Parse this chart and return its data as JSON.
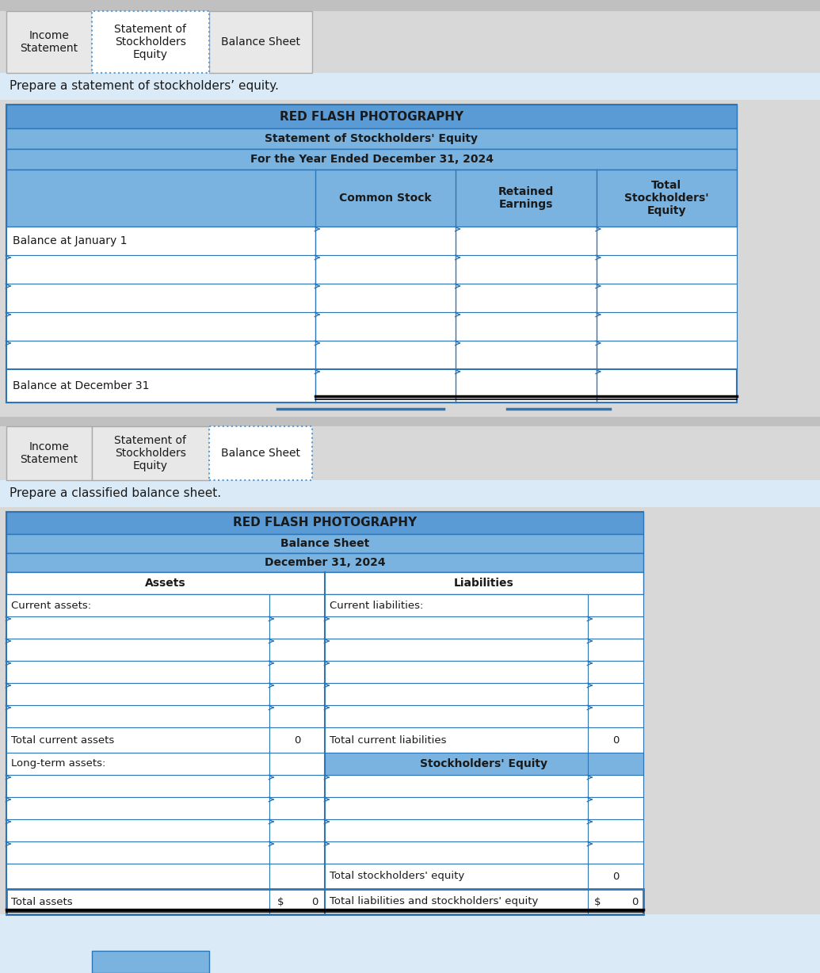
{
  "page_bg": "#d8d8d8",
  "header_bg_dark": "#5b9bd5",
  "header_bg": "#7ab3e0",
  "light_blue_bg": "#daeaf7",
  "white": "#ffffff",
  "black": "#000000",
  "border_dark": "#2e75b6",
  "border_med": "#5b9bd5",
  "tab_bg": "#e8e8e8",
  "tab_active_border": "#5b9bd5",
  "tab1_label": "Income\nStatement",
  "tab2_label": "Statement of\nStockholders\nEquity",
  "tab3_label": "Balance Sheet",
  "instruction1": "Prepare a statement of stockholders’ equity.",
  "instruction2": "Prepare a classified balance sheet.",
  "se_company": "RED FLASH PHOTOGRAPHY",
  "se_title": "Statement of Stockholders' Equity",
  "se_subtitle": "For the Year Ended December 31, 2024",
  "se_col1": "Common Stock",
  "se_col2": "Retained\nEarnings",
  "se_col3": "Total\nStockholders'\nEquity",
  "se_row1": "Balance at January 1",
  "se_row_last": "Balance at December 31",
  "bs_company": "RED FLASH PHOTOGRAPHY",
  "bs_title": "Balance Sheet",
  "bs_subtitle": "December 31, 2024",
  "bs_assets_header": "Assets",
  "bs_liabilities_header": "Liabilities",
  "bs_current_assets": "Current assets:",
  "bs_total_current_assets": "Total current assets",
  "bs_long_term_assets": "Long-term assets:",
  "bs_total_assets": "Total assets",
  "bs_current_liabilities": "Current liabilities:",
  "bs_total_current_liabilities": "Total current liabilities",
  "bs_se_header": "Stockholders' Equity",
  "bs_total_se": "Total stockholders' equity",
  "bs_total_liab_se": "Total liabilities and stockholders' equity",
  "bs_dollar_sign": "$",
  "bs_zero": "0"
}
